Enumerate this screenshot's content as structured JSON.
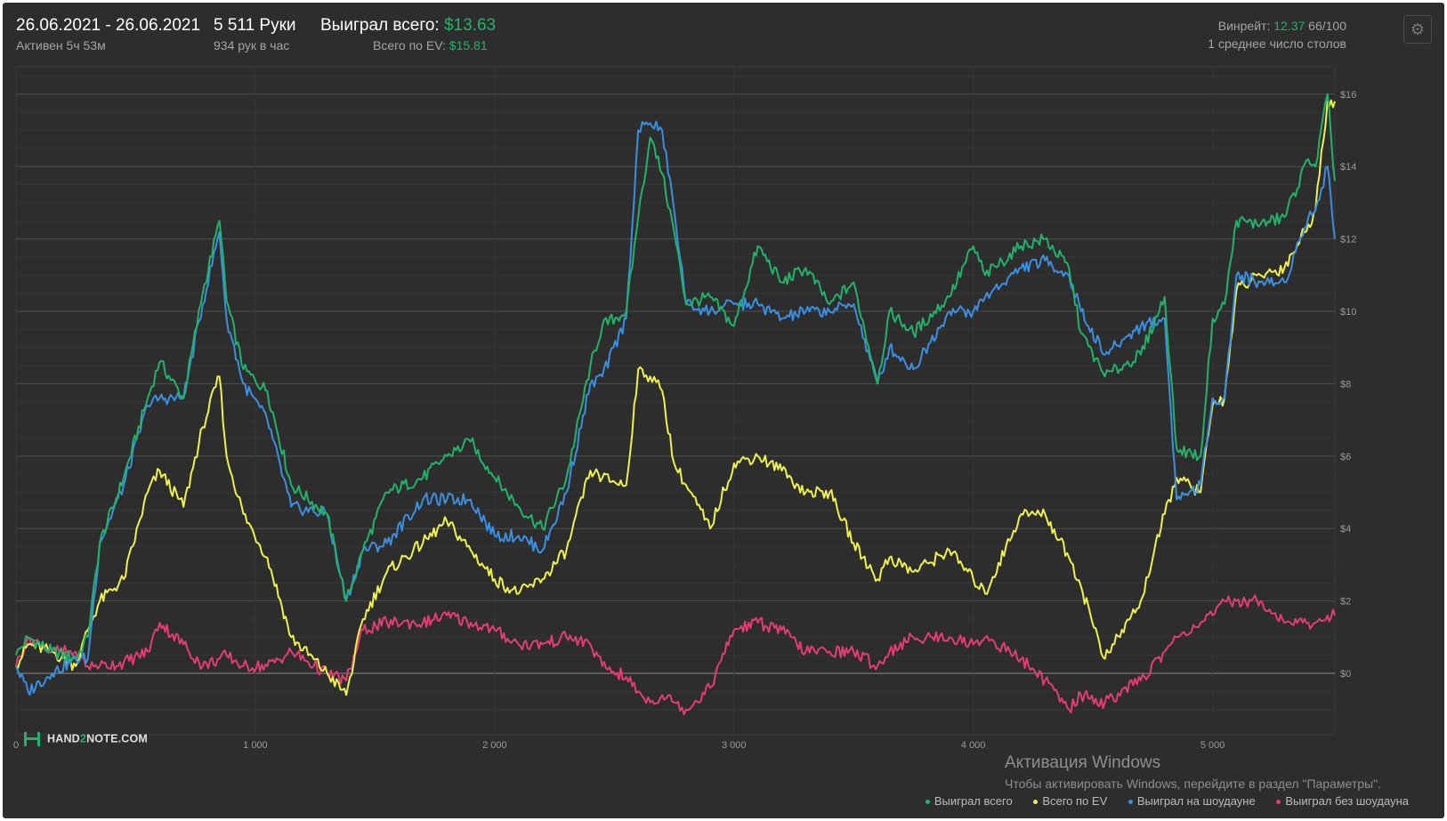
{
  "header": {
    "date_range": "26.06.2021 - 26.06.2021",
    "active_time": "Активен 5ч 53м",
    "hands": "5 511 Руки",
    "hands_per_hour": "934 рук в час",
    "won_total_label": "Выиграл всего:",
    "won_total_value": "$13.63",
    "ev_total_label": "Всего по EV:",
    "ev_total_value": "$15.81",
    "winrate_label": "Винрейт:",
    "winrate_value": "12.37",
    "winrate_unit": "66/100",
    "avg_tables": "1 среднее число столов",
    "settings_icon": "gear-icon"
  },
  "branding": {
    "logo_text_a": "HAND",
    "logo_text_b": "2",
    "logo_text_c": "NOTE.COM"
  },
  "watermark": {
    "title": "Активация Windows",
    "text": "Чтобы активировать Windows, перейдите в раздел \"Параметры\"."
  },
  "colors": {
    "won_total": "#22b36a",
    "ev_total": "#eef24a",
    "showdown": "#3b8fe0",
    "non_showdown": "#e43c74",
    "background": "#2d2d2d",
    "grid": "#4a4a4a"
  },
  "chart_data": {
    "type": "line",
    "xlim": [
      0,
      5511
    ],
    "ylim": [
      -1,
      16.5
    ],
    "x_ticks": [
      {
        "value": 0,
        "label": "0"
      },
      {
        "value": 1000,
        "label": "1 000"
      },
      {
        "value": 2000,
        "label": "2 000"
      },
      {
        "value": 3000,
        "label": "3 000"
      },
      {
        "value": 4000,
        "label": "4 000"
      },
      {
        "value": 5000,
        "label": "5 000"
      }
    ],
    "y_ticks": [
      {
        "value": 0,
        "label": "$0"
      },
      {
        "value": 2,
        "label": "$2"
      },
      {
        "value": 4,
        "label": "$4"
      },
      {
        "value": 6,
        "label": "$6"
      },
      {
        "value": 8,
        "label": "$8"
      },
      {
        "value": 10,
        "label": "$10"
      },
      {
        "value": 12,
        "label": "$12"
      },
      {
        "value": 14,
        "label": "$14"
      },
      {
        "value": 16,
        "label": "$16"
      }
    ],
    "grid": true,
    "legend_position": "bottom-right",
    "series": [
      {
        "name": "Выиграл всего",
        "color": "#22b36a",
        "x": [
          0,
          50,
          150,
          250,
          300,
          350,
          450,
          550,
          600,
          700,
          780,
          850,
          880,
          950,
          1050,
          1150,
          1300,
          1380,
          1450,
          1550,
          1700,
          1800,
          1900,
          2000,
          2100,
          2200,
          2300,
          2400,
          2450,
          2550,
          2600,
          2650,
          2700,
          2750,
          2800,
          2900,
          3000,
          3100,
          3200,
          3300,
          3400,
          3500,
          3600,
          3650,
          3750,
          3900,
          4000,
          4050,
          4200,
          4300,
          4400,
          4450,
          4550,
          4700,
          4800,
          4850,
          4950,
          5000,
          5050,
          5100,
          5200,
          5300,
          5400,
          5430,
          5480,
          5511
        ],
        "y": [
          0.5,
          1.0,
          0.6,
          0.4,
          1.0,
          3.6,
          5.4,
          7.6,
          8.6,
          7.6,
          10.5,
          12.5,
          10.3,
          8.4,
          7.8,
          5.2,
          4.4,
          2.0,
          3.4,
          5.0,
          5.4,
          6.0,
          6.4,
          5.4,
          4.6,
          4.0,
          5.4,
          8.5,
          9.6,
          10.0,
          12.6,
          14.8,
          13.8,
          12.2,
          10.2,
          10.4,
          9.6,
          11.8,
          10.8,
          11.2,
          10.2,
          10.8,
          8.0,
          10.0,
          9.4,
          10.4,
          11.8,
          11.0,
          11.8,
          12.0,
          11.2,
          9.4,
          8.2,
          8.8,
          10.4,
          6.2,
          6.0,
          9.8,
          10.2,
          12.5,
          12.4,
          12.6,
          14.2,
          14.0,
          16.0,
          13.6
        ]
      },
      {
        "name": "Всего по EV",
        "color": "#eef24a",
        "x": [
          0,
          50,
          150,
          250,
          300,
          350,
          450,
          550,
          600,
          700,
          780,
          850,
          880,
          950,
          1050,
          1150,
          1300,
          1380,
          1450,
          1550,
          1700,
          1800,
          1900,
          2000,
          2100,
          2200,
          2300,
          2400,
          2450,
          2550,
          2600,
          2650,
          2700,
          2750,
          2800,
          2900,
          3000,
          3100,
          3200,
          3300,
          3400,
          3500,
          3600,
          3650,
          3750,
          3900,
          4000,
          4050,
          4200,
          4300,
          4400,
          4450,
          4550,
          4700,
          4800,
          4850,
          4950,
          5000,
          5050,
          5100,
          5200,
          5300,
          5400,
          5430,
          5480,
          5511
        ],
        "y": [
          0.2,
          0.8,
          0.6,
          0.2,
          1.2,
          2.0,
          2.6,
          5.0,
          5.6,
          4.6,
          6.8,
          8.2,
          6.0,
          4.4,
          3.2,
          1.0,
          0.0,
          -0.6,
          1.5,
          2.8,
          3.6,
          4.2,
          3.4,
          2.6,
          2.2,
          2.6,
          3.4,
          5.6,
          5.4,
          5.2,
          8.4,
          8.2,
          7.8,
          5.8,
          5.2,
          4.0,
          5.8,
          6.0,
          5.6,
          5.0,
          5.0,
          3.6,
          2.6,
          3.2,
          2.8,
          3.4,
          2.6,
          2.2,
          4.4,
          4.4,
          3.2,
          2.4,
          0.4,
          2.0,
          4.4,
          5.4,
          5.0,
          7.4,
          7.6,
          10.6,
          11.0,
          11.2,
          12.4,
          12.8,
          15.8,
          15.8
        ]
      },
      {
        "name": "Выиграл на шоудауне",
        "color": "#3b8fe0",
        "x": [
          0,
          50,
          150,
          250,
          300,
          350,
          450,
          550,
          600,
          700,
          780,
          850,
          880,
          950,
          1050,
          1150,
          1300,
          1380,
          1450,
          1550,
          1700,
          1800,
          1900,
          2000,
          2100,
          2200,
          2300,
          2400,
          2450,
          2550,
          2600,
          2650,
          2700,
          2750,
          2800,
          2900,
          3000,
          3100,
          3200,
          3300,
          3400,
          3500,
          3600,
          3650,
          3750,
          3900,
          4000,
          4050,
          4200,
          4300,
          4400,
          4450,
          4550,
          4700,
          4800,
          4850,
          4950,
          5000,
          5050,
          5100,
          5200,
          5300,
          5400,
          5430,
          5480,
          5511
        ],
        "y": [
          0.2,
          -0.5,
          0.0,
          0.4,
          0.4,
          3.6,
          5.2,
          7.4,
          7.6,
          7.6,
          10.2,
          12.2,
          9.8,
          8.0,
          7.0,
          4.6,
          4.4,
          2.0,
          3.4,
          3.6,
          4.8,
          4.8,
          4.8,
          3.8,
          3.8,
          3.4,
          5.0,
          8.0,
          8.2,
          9.8,
          15.0,
          15.2,
          15.0,
          12.8,
          10.2,
          10.0,
          10.2,
          10.2,
          9.8,
          10.0,
          10.0,
          10.2,
          8.0,
          9.0,
          8.4,
          10.0,
          10.0,
          10.4,
          11.2,
          11.4,
          11.0,
          10.0,
          8.8,
          9.6,
          9.8,
          4.8,
          5.2,
          7.6,
          7.6,
          11.0,
          10.8,
          10.8,
          12.6,
          12.8,
          14.0,
          12.0
        ]
      },
      {
        "name": "Выиграл без шоудауна",
        "color": "#e43c74",
        "x": [
          0,
          50,
          150,
          250,
          300,
          350,
          450,
          550,
          600,
          700,
          780,
          850,
          880,
          950,
          1050,
          1150,
          1300,
          1380,
          1450,
          1550,
          1700,
          1800,
          1900,
          2000,
          2100,
          2200,
          2300,
          2400,
          2450,
          2550,
          2600,
          2650,
          2700,
          2750,
          2800,
          2900,
          3000,
          3100,
          3200,
          3300,
          3400,
          3500,
          3600,
          3650,
          3750,
          3900,
          4000,
          4050,
          4200,
          4300,
          4400,
          4450,
          4550,
          4700,
          4800,
          4850,
          4950,
          5000,
          5050,
          5100,
          5200,
          5300,
          5400,
          5430,
          5480,
          5511
        ],
        "y": [
          0.2,
          1.0,
          0.6,
          0.6,
          0.2,
          0.2,
          0.3,
          0.6,
          1.4,
          0.8,
          0.2,
          0.4,
          0.5,
          0.2,
          0.2,
          0.6,
          0.0,
          -0.2,
          1.2,
          1.4,
          1.4,
          1.6,
          1.4,
          1.2,
          0.8,
          0.8,
          1.0,
          0.8,
          0.2,
          -0.1,
          -0.5,
          -0.8,
          -0.6,
          -0.8,
          -1.0,
          -0.4,
          1.2,
          1.4,
          1.2,
          0.6,
          0.6,
          0.6,
          0.2,
          0.6,
          1.0,
          1.0,
          0.8,
          1.0,
          0.4,
          -0.2,
          -1.0,
          -0.6,
          -0.8,
          -0.2,
          0.6,
          1.0,
          1.4,
          1.6,
          2.0,
          2.0,
          2.0,
          1.4,
          1.4,
          1.4,
          1.6,
          1.6
        ]
      }
    ]
  }
}
